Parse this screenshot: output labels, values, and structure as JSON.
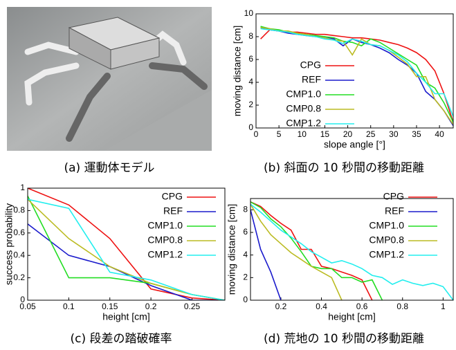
{
  "figure": {
    "captions": [
      "(a) 運動体モデル",
      "(b) 斜面の 10 秒間の移動距離",
      "(c) 段差の踏破確率",
      "(d) 荒地の 10 秒間の移動距離"
    ]
  },
  "chart_data": [
    {
      "type": "line",
      "xlabel": "slope angle [°]",
      "ylabel": "moving distance [cm]",
      "xlim": [
        0,
        43
      ],
      "xticks": [
        0,
        5,
        10,
        15,
        20,
        25,
        30,
        35,
        40
      ],
      "ylim": [
        0,
        10
      ],
      "yticks": [
        0,
        2,
        4,
        6,
        8,
        10
      ],
      "x": [
        1,
        3,
        5,
        7,
        9,
        11,
        13,
        15,
        17,
        19,
        21,
        23,
        25,
        27,
        29,
        31,
        33,
        35,
        37,
        39,
        41,
        43
      ],
      "series": [
        {
          "name": "CPG",
          "color": "#ee1111",
          "values": [
            7.8,
            8.6,
            8.5,
            8.4,
            8.4,
            8.3,
            8.2,
            8.2,
            8.1,
            8.0,
            7.9,
            7.9,
            7.8,
            7.7,
            7.5,
            7.3,
            7.0,
            6.6,
            6.0,
            5.0,
            3.0,
            0.5
          ]
        },
        {
          "name": "REF",
          "color": "#1a1acc",
          "values": [
            8.8,
            8.6,
            8.5,
            8.3,
            8.2,
            8.1,
            8.0,
            8.0,
            7.8,
            7.2,
            7.8,
            7.5,
            7.3,
            7.0,
            6.6,
            6.0,
            5.5,
            4.8,
            3.2,
            2.5,
            1.5,
            0.2
          ]
        },
        {
          "name": "CMP1.0",
          "color": "#22dd22",
          "values": [
            8.9,
            8.7,
            8.6,
            8.4,
            8.3,
            8.2,
            8.1,
            8.0,
            7.9,
            7.6,
            7.5,
            7.2,
            7.8,
            7.5,
            7.0,
            6.5,
            6.0,
            5.5,
            4.0,
            3.5,
            2.2,
            0.5
          ]
        },
        {
          "name": "CMP0.8",
          "color": "#bbbb22",
          "values": [
            8.8,
            8.7,
            8.5,
            8.5,
            8.3,
            8.2,
            8.0,
            7.9,
            7.7,
            7.6,
            6.4,
            7.8,
            7.3,
            7.2,
            6.8,
            6.2,
            5.6,
            4.5,
            4.5,
            2.5,
            1.5,
            0.3
          ]
        },
        {
          "name": "CMP1.2",
          "color": "#22eeee",
          "values": [
            8.7,
            8.6,
            8.5,
            8.4,
            8.2,
            8.1,
            8.0,
            7.8,
            7.7,
            7.4,
            7.8,
            7.6,
            7.3,
            7.2,
            6.8,
            6.4,
            5.8,
            4.8,
            4.0,
            3.0,
            3.0,
            1.0
          ]
        }
      ]
    },
    {
      "type": "line",
      "xlabel": "height [cm]",
      "ylabel": "success probability",
      "xlim": [
        0.05,
        0.29
      ],
      "xticks": [
        0.05,
        0.1,
        0.15,
        0.2,
        0.25
      ],
      "ylim": [
        0,
        1
      ],
      "yticks": [
        0,
        0.2,
        0.4,
        0.6,
        0.8,
        1
      ],
      "x": [
        0.05,
        0.1,
        0.15,
        0.2,
        0.25,
        0.29
      ],
      "series": [
        {
          "name": "CPG",
          "color": "#ee1111",
          "values": [
            1.0,
            0.85,
            0.55,
            0.1,
            0.02,
            0
          ]
        },
        {
          "name": "REF",
          "color": "#1a1acc",
          "values": [
            0.68,
            0.4,
            0.3,
            0.13,
            0,
            0
          ]
        },
        {
          "name": "CMP1.0",
          "color": "#22dd22",
          "values": [
            0.93,
            0.2,
            0.2,
            0.15,
            0.05,
            0
          ]
        },
        {
          "name": "CMP0.8",
          "color": "#bbbb22",
          "values": [
            0.9,
            0.55,
            0.3,
            0.15,
            0.05,
            0
          ]
        },
        {
          "name": "CMP1.2",
          "color": "#22eeee",
          "values": [
            0.9,
            0.82,
            0.25,
            0.18,
            0.05,
            0
          ]
        }
      ]
    },
    {
      "type": "line",
      "xlabel": "height [cm]",
      "ylabel": "moving distance [cm]",
      "xlim": [
        0.05,
        1.05
      ],
      "xticks": [
        0.2,
        0.4,
        0.6,
        0.8,
        1
      ],
      "ylim": [
        0,
        9
      ],
      "yticks": [
        0,
        2,
        4,
        6,
        8
      ],
      "series": [
        {
          "name": "CPG",
          "color": "#ee1111",
          "x": [
            0.05,
            0.1,
            0.15,
            0.2,
            0.25,
            0.3,
            0.35,
            0.4,
            0.45,
            0.5,
            0.55,
            0.6,
            0.65
          ],
          "values": [
            8.7,
            8.3,
            7.5,
            6.8,
            6.2,
            4.5,
            4.5,
            3.0,
            2.8,
            2.5,
            2.2,
            1.8,
            0
          ]
        },
        {
          "name": "REF",
          "color": "#1a1acc",
          "x": [
            0.05,
            0.1,
            0.15,
            0.2
          ],
          "values": [
            8,
            4.5,
            2.5,
            0
          ]
        },
        {
          "name": "CMP1.0",
          "color": "#22dd22",
          "x": [
            0.05,
            0.1,
            0.15,
            0.2,
            0.25,
            0.3,
            0.35,
            0.4,
            0.45,
            0.5,
            0.55,
            0.6,
            0.65,
            0.7
          ],
          "values": [
            8.7,
            8.2,
            7.2,
            6.5,
            5.5,
            4.3,
            3.0,
            2.8,
            2.8,
            2.0,
            2.0,
            1.6,
            1.8,
            0
          ]
        },
        {
          "name": "CMP0.8",
          "color": "#bbbb22",
          "x": [
            0.05,
            0.1,
            0.15,
            0.2,
            0.25,
            0.3,
            0.35,
            0.4,
            0.45,
            0.5
          ],
          "values": [
            8.5,
            7,
            5.8,
            5.0,
            4.2,
            3.6,
            3.0,
            2.5,
            2.0,
            0
          ]
        },
        {
          "name": "CMP1.2",
          "color": "#22eeee",
          "x": [
            0.05,
            0.1,
            0.15,
            0.2,
            0.25,
            0.3,
            0.35,
            0.4,
            0.45,
            0.5,
            0.55,
            0.6,
            0.65,
            0.7,
            0.75,
            0.8,
            0.85,
            0.9,
            0.95,
            1,
            1.05
          ],
          "values": [
            8.5,
            7.8,
            7.0,
            6.2,
            5.6,
            5.0,
            4.3,
            3.8,
            3.3,
            3.5,
            3.2,
            2.8,
            2.2,
            2.0,
            1.4,
            1.8,
            1.5,
            1.3,
            1.5,
            1.2,
            0
          ]
        }
      ]
    }
  ]
}
